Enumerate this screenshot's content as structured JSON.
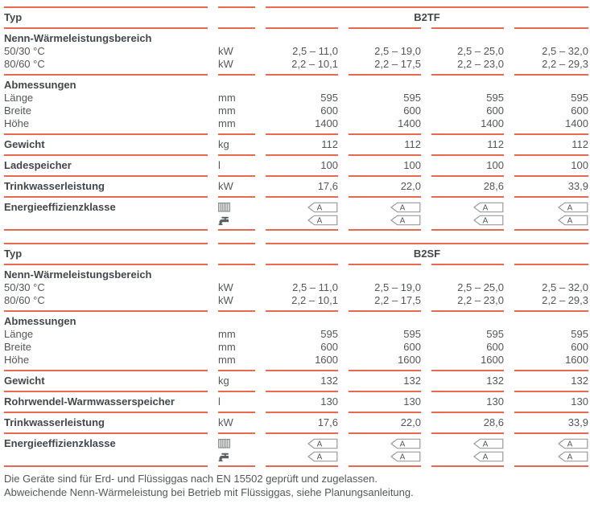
{
  "colors": {
    "rule_line": "#e66950",
    "bold_text": "#43474b",
    "body_text": "#54575a",
    "tag_border": "#97999c"
  },
  "tables": [
    {
      "typ_label": "Typ",
      "model": "B2TF",
      "rows": [
        {
          "label": "Nenn-Wärmeleistungsbereich",
          "style": "bold",
          "unit": "",
          "values": null,
          "rule_below": false
        },
        {
          "label": "50/30 °C",
          "style": "normal",
          "unit": "kW",
          "values": [
            "2,5 – 11,0",
            "2,5 – 19,0",
            "2,5 – 25,0",
            "2,5 – 32,0"
          ],
          "rule_below": false
        },
        {
          "label": "80/60 °C",
          "style": "normal",
          "unit": "kW",
          "values": [
            "2,2 – 10,1",
            "2,2 – 17,5",
            "2,2 – 23,0",
            "2,2 – 29,3"
          ],
          "rule_below": true
        },
        {
          "label": "Abmessungen",
          "style": "bold",
          "unit": "",
          "values": null,
          "rule_below": false
        },
        {
          "label": "Länge",
          "style": "normal",
          "unit": "mm",
          "values": [
            "595",
            "595",
            "595",
            "595"
          ],
          "rule_below": false
        },
        {
          "label": "Breite",
          "style": "normal",
          "unit": "mm",
          "values": [
            "600",
            "600",
            "600",
            "600"
          ],
          "rule_below": false
        },
        {
          "label": "Höhe",
          "style": "normal",
          "unit": "mm",
          "values": [
            "1400",
            "1400",
            "1400",
            "1400"
          ],
          "rule_below": true
        },
        {
          "label": "Gewicht",
          "style": "bold",
          "unit": "kg",
          "values": [
            "112",
            "112",
            "112",
            "112"
          ],
          "rule_below": true
        },
        {
          "label": "Ladespeicher",
          "style": "bold",
          "unit": "l",
          "values": [
            "100",
            "100",
            "100",
            "100"
          ],
          "rule_below": true
        },
        {
          "label": "Trinkwasserleistung",
          "style": "bold",
          "unit": "kW",
          "values": [
            "17,6",
            "22,0",
            "28,6",
            "33,9"
          ],
          "rule_below": true
        },
        {
          "label": "Energieeffizienzklasse",
          "style": "bold",
          "type": "energy",
          "icons": [
            "radiator-icon",
            "faucet-icon"
          ],
          "heating_classes": [
            "A",
            "A",
            "A",
            "A"
          ],
          "water_classes": [
            "A",
            "A",
            "A",
            "A"
          ],
          "rule_below": true
        }
      ]
    },
    {
      "typ_label": "Typ",
      "model": "B2SF",
      "rows": [
        {
          "label": "Nenn-Wärmeleistungsbereich",
          "style": "bold",
          "unit": "",
          "values": null,
          "rule_below": false
        },
        {
          "label": "50/30 °C",
          "style": "normal",
          "unit": "kW",
          "values": [
            "2,5 – 11,0",
            "2,5 – 19,0",
            "2,5 – 25,0",
            "2,5 – 32,0"
          ],
          "rule_below": false
        },
        {
          "label": "80/60 °C",
          "style": "normal",
          "unit": "kW",
          "values": [
            "2,2 – 10,1",
            "2,2 – 17,5",
            "2,2 – 23,0",
            "2,2 – 29,3"
          ],
          "rule_below": true
        },
        {
          "label": "Abmessungen",
          "style": "bold",
          "unit": "",
          "values": null,
          "rule_below": false
        },
        {
          "label": "Länge",
          "style": "normal",
          "unit": "mm",
          "values": [
            "595",
            "595",
            "595",
            "595"
          ],
          "rule_below": false
        },
        {
          "label": "Breite",
          "style": "normal",
          "unit": "mm",
          "values": [
            "600",
            "600",
            "600",
            "600"
          ],
          "rule_below": false
        },
        {
          "label": "Höhe",
          "style": "normal",
          "unit": "mm",
          "values": [
            "1600",
            "1600",
            "1600",
            "1600"
          ],
          "rule_below": true
        },
        {
          "label": "Gewicht",
          "style": "bold",
          "unit": "kg",
          "values": [
            "132",
            "132",
            "132",
            "132"
          ],
          "rule_below": true
        },
        {
          "label": "Rohrwendel-Warmwasserspeicher",
          "style": "bold",
          "unit": "l",
          "values": [
            "130",
            "130",
            "130",
            "130"
          ],
          "rule_below": true
        },
        {
          "label": "Trinkwasserleistung",
          "style": "bold",
          "unit": "kW",
          "values": [
            "17,6",
            "22,0",
            "28,6",
            "33,9"
          ],
          "rule_below": true
        },
        {
          "label": "Energieeffizienzklasse",
          "style": "bold",
          "type": "energy",
          "icons": [
            "radiator-icon",
            "faucet-icon"
          ],
          "heating_classes": [
            "A",
            "A",
            "A",
            "A"
          ],
          "water_classes": [
            "A",
            "A",
            "A",
            "A"
          ],
          "rule_below": true
        }
      ]
    }
  ],
  "footnotes": [
    "Die Geräte sind für Erd- und Flüssiggas nach EN 15502 geprüft und zugelassen.",
    "Abweichende Nenn-Wärmeleistung bei Betrieb mit Flüssiggas, siehe Planungsanleitung."
  ]
}
